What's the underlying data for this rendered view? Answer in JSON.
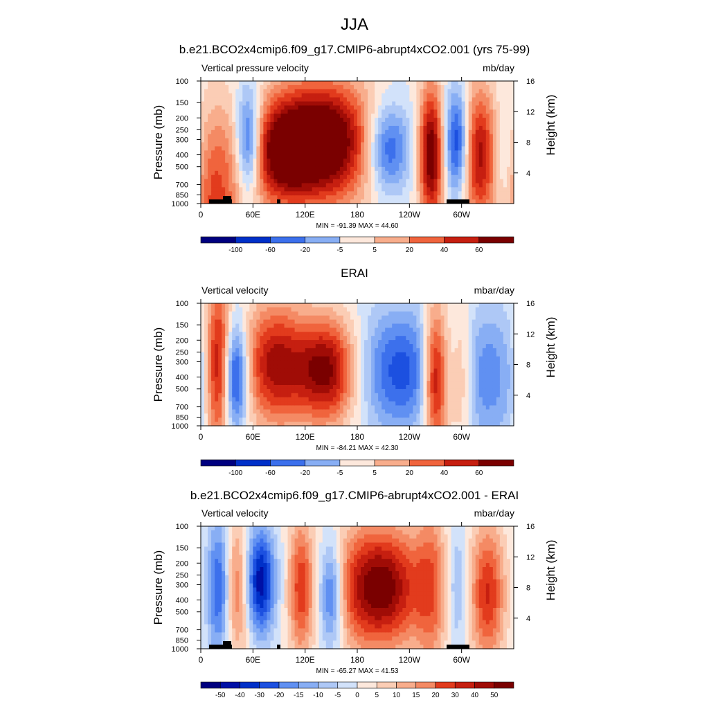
{
  "figure": {
    "title": "JJA",
    "colors": {
      "diverging": [
        "#00007f",
        "#0010a6",
        "#0030c8",
        "#1c50e0",
        "#3c70ec",
        "#6090f2",
        "#88aef4",
        "#aec8f6",
        "#d2e2fa",
        "#fde8dc",
        "#fbcdb5",
        "#f8ad8c",
        "#f48a64",
        "#f0643d",
        "#e23b1d",
        "#c61f10",
        "#a00c06",
        "#7a0000"
      ],
      "land_mask": "#000000"
    }
  },
  "chart_data": [
    {
      "type": "heatmap",
      "title": "b.e21.BCO2x4cmip6.f09_g17.CMIP6-abrupt4xCO2.001 (yrs 75-99)",
      "left_label": "Vertical pressure velocity",
      "right_label": "mb/day",
      "ylabel": "Pressure (mb)",
      "y2label": "Height (km)",
      "x_ticks": [
        "0",
        "60E",
        "120E",
        "180",
        "120W",
        "60W"
      ],
      "y_ticks": [
        "100",
        "150",
        "200",
        "250",
        "300",
        "400",
        "500",
        "700",
        "850",
        "1000"
      ],
      "y2_ticks": [
        "4",
        "8",
        "12",
        "16"
      ],
      "stats": "MIN = -91.39  MAX =  44.60",
      "colorbar_labels": [
        "-100",
        "-60",
        "-20",
        "-5",
        "5",
        "20",
        "40",
        "60"
      ],
      "min": -91.39,
      "max": 44.6
    },
    {
      "type": "heatmap",
      "title": "ERAI",
      "left_label": "Vertical velocity",
      "right_label": "mbar/day",
      "ylabel": "Pressure (mb)",
      "y2label": "Height (km)",
      "x_ticks": [
        "0",
        "60E",
        "120E",
        "180",
        "120W",
        "60W"
      ],
      "y_ticks": [
        "100",
        "150",
        "200",
        "250",
        "300",
        "400",
        "500",
        "700",
        "850",
        "1000"
      ],
      "y2_ticks": [
        "4",
        "8",
        "12",
        "16"
      ],
      "stats": "MIN = -84.21  MAX =  42.30",
      "colorbar_labels": [
        "-100",
        "-60",
        "-20",
        "-5",
        "5",
        "20",
        "40",
        "60"
      ],
      "min": -84.21,
      "max": 42.3
    },
    {
      "type": "heatmap",
      "title": "b.e21.BCO2x4cmip6.f09_g17.CMIP6-abrupt4xCO2.001 - ERAI",
      "left_label": "Vertical velocity",
      "right_label": "mbar/day",
      "ylabel": "Pressure (mb)",
      "y2label": "Height (km)",
      "x_ticks": [
        "0",
        "60E",
        "120E",
        "180",
        "120W",
        "60W"
      ],
      "y_ticks": [
        "100",
        "150",
        "200",
        "250",
        "300",
        "400",
        "500",
        "700",
        "850",
        "1000"
      ],
      "y2_ticks": [
        "4",
        "8",
        "12",
        "16"
      ],
      "stats": "MIN = -65.27  MAX =  41.53",
      "colorbar_labels": [
        "-50",
        "-40",
        "-30",
        "-20",
        "-15",
        "-10",
        "-5",
        "0",
        "5",
        "10",
        "15",
        "20",
        "30",
        "40",
        "50"
      ],
      "min": -65.27,
      "max": 41.53
    }
  ]
}
